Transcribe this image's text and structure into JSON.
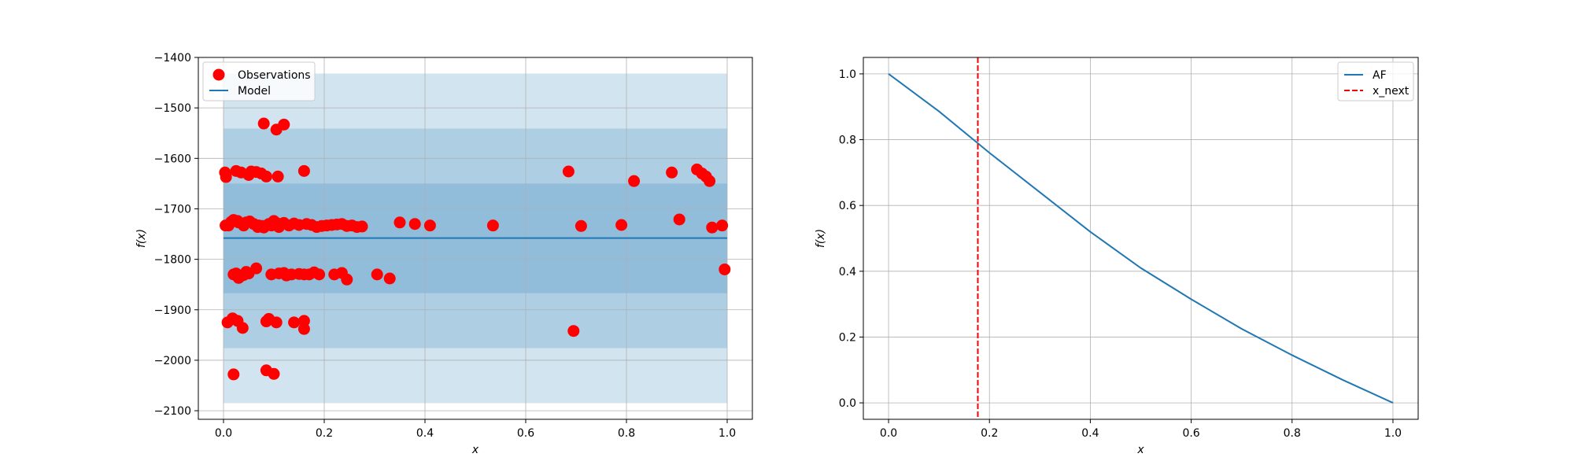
{
  "chart_data": [
    {
      "type": "scatter",
      "title": "",
      "xlabel": "x",
      "ylabel": "f(x)",
      "xlim": [
        -0.05,
        1.05
      ],
      "ylim": [
        -2117,
        -1400
      ],
      "xticks": [
        0.0,
        0.2,
        0.4,
        0.6,
        0.8,
        1.0
      ],
      "xtick_labels": [
        "0.0",
        "0.2",
        "0.4",
        "0.6",
        "0.8",
        "1.0"
      ],
      "yticks": [
        -2100,
        -2000,
        -1900,
        -1800,
        -1700,
        -1600,
        -1500,
        -1400
      ],
      "ytick_labels": [
        "−2100",
        "−2000",
        "−1900",
        "−1800",
        "−1700",
        "−1600",
        "−1500",
        "−1400"
      ],
      "grid": true,
      "legend_position": "top-left",
      "legend": [
        "Observations",
        "Model"
      ],
      "model": {
        "name": "Model",
        "x": [
          0.0,
          1.0
        ],
        "mean": -1758,
        "bands": [
          {
            "lower": -1867,
            "upper": -1650
          },
          {
            "lower": -1976,
            "upper": -1541
          },
          {
            "lower": -2085,
            "upper": -1432
          }
        ],
        "color": "#1f77b4"
      },
      "series": [
        {
          "name": "Observations",
          "color": "#ff0000",
          "points": [
            [
              0.003,
              -1628
            ],
            [
              0.005,
              -1637
            ],
            [
              0.004,
              -1733
            ],
            [
              0.01,
              -1733
            ],
            [
              0.015,
              -1726
            ],
            [
              0.02,
              -1722
            ],
            [
              0.025,
              -1625
            ],
            [
              0.028,
              -1724
            ],
            [
              0.03,
              -1727
            ],
            [
              0.035,
              -1628
            ],
            [
              0.04,
              -1733
            ],
            [
              0.045,
              -1727
            ],
            [
              0.05,
              -1633
            ],
            [
              0.052,
              -1725
            ],
            [
              0.055,
              -1626
            ],
            [
              0.06,
              -1730
            ],
            [
              0.065,
              -1627
            ],
            [
              0.068,
              -1736
            ],
            [
              0.07,
              -1733
            ],
            [
              0.075,
              -1630
            ],
            [
              0.078,
              -1734
            ],
            [
              0.08,
              -1737
            ],
            [
              0.085,
              -1636
            ],
            [
              0.09,
              -1730
            ],
            [
              0.095,
              -1733
            ],
            [
              0.1,
              -1724
            ],
            [
              0.105,
              -1728
            ],
            [
              0.108,
              -1636
            ],
            [
              0.11,
              -1736
            ],
            [
              0.115,
              -1730
            ],
            [
              0.12,
              -1728
            ],
            [
              0.13,
              -1733
            ],
            [
              0.14,
              -1729
            ],
            [
              0.15,
              -1732
            ],
            [
              0.16,
              -1625
            ],
            [
              0.165,
              -1730
            ],
            [
              0.175,
              -1732
            ],
            [
              0.185,
              -1736
            ],
            [
              0.195,
              -1734
            ],
            [
              0.205,
              -1733
            ],
            [
              0.215,
              -1732
            ],
            [
              0.225,
              -1731
            ],
            [
              0.235,
              -1730
            ],
            [
              0.245,
              -1734
            ],
            [
              0.255,
              -1733
            ],
            [
              0.265,
              -1736
            ],
            [
              0.275,
              -1735
            ],
            [
              0.35,
              -1727
            ],
            [
              0.38,
              -1730
            ],
            [
              0.41,
              -1733
            ],
            [
              0.535,
              -1733
            ],
            [
              0.685,
              -1626
            ],
            [
              0.71,
              -1734
            ],
            [
              0.79,
              -1732
            ],
            [
              0.815,
              -1645
            ],
            [
              0.89,
              -1628
            ],
            [
              0.905,
              -1721
            ],
            [
              0.94,
              -1622
            ],
            [
              0.95,
              -1630
            ],
            [
              0.958,
              -1636
            ],
            [
              0.965,
              -1645
            ],
            [
              0.97,
              -1737
            ],
            [
              0.99,
              -1733
            ],
            [
              0.995,
              -1820
            ],
            [
              0.02,
              -1830
            ],
            [
              0.025,
              -1828
            ],
            [
              0.03,
              -1837
            ],
            [
              0.035,
              -1833
            ],
            [
              0.04,
              -1831
            ],
            [
              0.045,
              -1825
            ],
            [
              0.05,
              -1828
            ],
            [
              0.065,
              -1818
            ],
            [
              0.095,
              -1830
            ],
            [
              0.11,
              -1828
            ],
            [
              0.12,
              -1827
            ],
            [
              0.125,
              -1832
            ],
            [
              0.135,
              -1830
            ],
            [
              0.15,
              -1829
            ],
            [
              0.16,
              -1830
            ],
            [
              0.17,
              -1830
            ],
            [
              0.18,
              -1826
            ],
            [
              0.19,
              -1830
            ],
            [
              0.22,
              -1830
            ],
            [
              0.235,
              -1827
            ],
            [
              0.245,
              -1840
            ],
            [
              0.305,
              -1830
            ],
            [
              0.33,
              -1838
            ],
            [
              0.008,
              -1925
            ],
            [
              0.018,
              -1917
            ],
            [
              0.028,
              -1922
            ],
            [
              0.038,
              -1936
            ],
            [
              0.085,
              -1923
            ],
            [
              0.09,
              -1918
            ],
            [
              0.105,
              -1925
            ],
            [
              0.14,
              -1925
            ],
            [
              0.16,
              -1922
            ],
            [
              0.16,
              -1938
            ],
            [
              0.695,
              -1942
            ],
            [
              0.08,
              -1531
            ],
            [
              0.105,
              -1543
            ],
            [
              0.12,
              -1533
            ],
            [
              0.02,
              -2028
            ],
            [
              0.085,
              -2020
            ],
            [
              0.1,
              -2027
            ]
          ]
        }
      ]
    },
    {
      "type": "line",
      "title": "",
      "xlabel": "x",
      "ylabel": "f(x)",
      "xlim": [
        -0.05,
        1.05
      ],
      "ylim": [
        -0.05,
        1.05
      ],
      "xticks": [
        0.0,
        0.2,
        0.4,
        0.6,
        0.8,
        1.0
      ],
      "xtick_labels": [
        "0.0",
        "0.2",
        "0.4",
        "0.6",
        "0.8",
        "1.0"
      ],
      "yticks": [
        0.0,
        0.2,
        0.4,
        0.6,
        0.8,
        1.0
      ],
      "ytick_labels": [
        "0.0",
        "0.2",
        "0.4",
        "0.6",
        "0.8",
        "1.0"
      ],
      "grid": true,
      "legend_position": "top-right",
      "legend": [
        "AF",
        "x_next"
      ],
      "series": [
        {
          "name": "AF",
          "color": "#1f77b4",
          "x": [
            0.0,
            0.1,
            0.2,
            0.3,
            0.4,
            0.5,
            0.6,
            0.7,
            0.8,
            0.9,
            1.0
          ],
          "y": [
            1.0,
            0.886,
            0.76,
            0.64,
            0.52,
            0.41,
            0.315,
            0.225,
            0.145,
            0.07,
            0.0
          ]
        }
      ],
      "vline": {
        "name": "x_next",
        "x": 0.177,
        "color": "#ff0000",
        "style": "dashed"
      }
    }
  ]
}
